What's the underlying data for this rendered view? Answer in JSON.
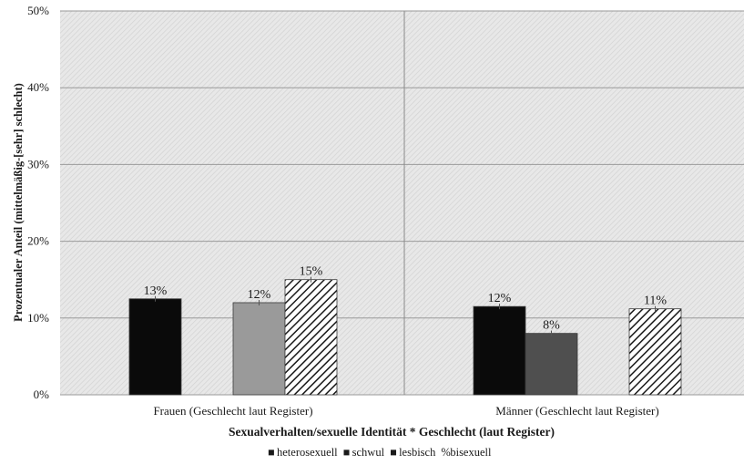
{
  "chart_data": {
    "type": "bar",
    "xlabel": "Sexualverhalten/sexuelle Identität * Geschlecht (laut Register)",
    "ylabel": "Prozentualer Anteil (mittelmäßig-[sehr] schlecht)",
    "ylim": [
      0,
      50
    ],
    "yticks": [
      "0%",
      "10%",
      "20%",
      "30%",
      "40%",
      "50%"
    ],
    "grid": true,
    "legend_position": "bottom",
    "categories": [
      "Frauen (Geschlecht laut Register)",
      "Männer (Geschlecht laut Register)"
    ],
    "series": [
      {
        "name": "heterosexuell",
        "values": [
          12.5,
          11.5
        ],
        "labels": [
          "13%",
          "12%"
        ],
        "color": "#0a0a0a",
        "pattern": "solid"
      },
      {
        "name": "schwul",
        "values": [
          null,
          8.0
        ],
        "labels": [
          "",
          "8%"
        ],
        "color": "#4f4f4f",
        "pattern": "solid"
      },
      {
        "name": "lesbisch",
        "values": [
          12.0,
          null
        ],
        "labels": [
          "12%",
          ""
        ],
        "color": "#9a9a9a",
        "pattern": "solid"
      },
      {
        "name": "bisexuell",
        "values": [
          15.0,
          11.2
        ],
        "labels": [
          "15%",
          "11%"
        ],
        "color": "#1a1a1a",
        "pattern": "hatch"
      }
    ],
    "legend_symbols": [
      "■",
      "■",
      "■",
      "%"
    ]
  }
}
